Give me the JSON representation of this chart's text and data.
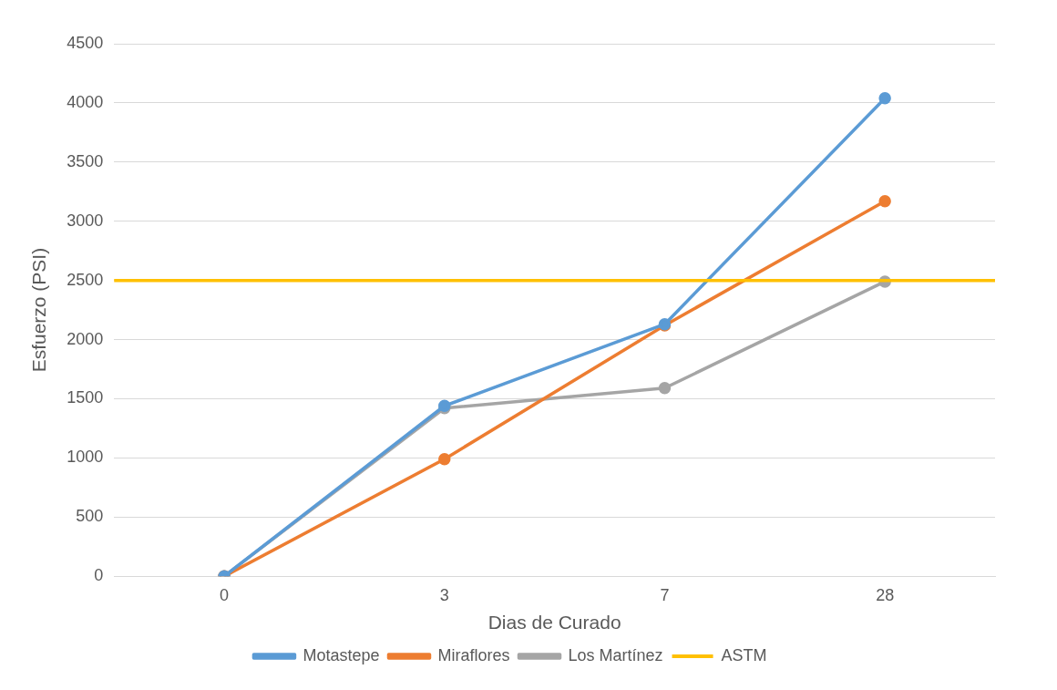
{
  "chart_data": {
    "type": "line",
    "xlabel": "Dias de Curado",
    "ylabel": "Esfuerzo (PSI)",
    "categories": [
      "0",
      "3",
      "7",
      "28"
    ],
    "series": [
      {
        "name": "Motastepe",
        "color": "#5b9bd5",
        "values": [
          0,
          1440,
          2130,
          4040
        ]
      },
      {
        "name": "Miraflores",
        "color": "#ed7d31",
        "values": [
          0,
          990,
          2120,
          3170
        ]
      },
      {
        "name": "Los Martínez",
        "color": "#a5a5a5",
        "values": [
          0,
          1420,
          1590,
          2490
        ]
      }
    ],
    "ref_lines": [
      {
        "axis": "y",
        "value": 2500,
        "label": "ASTM",
        "color": "#ffc000"
      }
    ],
    "ylim": [
      0,
      4500
    ],
    "yticks": [
      0,
      500,
      1000,
      1500,
      2000,
      2500,
      3000,
      3500,
      4000,
      4500
    ],
    "grid": "y",
    "legend": "bottom",
    "marker": "circle",
    "line_style": "solid"
  }
}
